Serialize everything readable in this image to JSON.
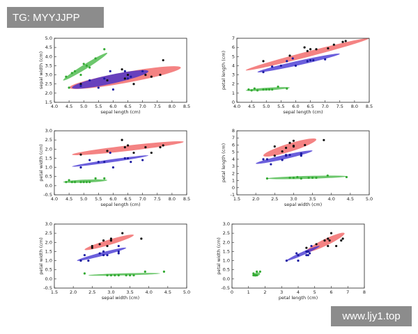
{
  "watermarks": [
    "TG: MYYJJPP",
    "www.ljy1.top"
  ],
  "chart_data": [
    {
      "type": "scatter",
      "xlabel": "sepal length (cm)",
      "ylabel": "sepal width (cm)",
      "xlim": [
        4,
        8.5
      ],
      "ylim": [
        1.5,
        5
      ],
      "xticks": [
        {
          "value": 4,
          "label": "4.0"
        },
        {
          "value": 4.5,
          "label": "4.5"
        },
        {
          "value": 5,
          "label": "5.0"
        },
        {
          "value": 5.5,
          "label": "5.5"
        },
        {
          "value": 6,
          "label": "6.0"
        },
        {
          "value": 6.5,
          "label": "6.5"
        },
        {
          "value": 7,
          "label": "7.0"
        },
        {
          "value": 7.5,
          "label": "7.5"
        },
        {
          "value": 8,
          "label": "8.0"
        },
        {
          "value": 8.5,
          "label": "8.5"
        }
      ],
      "yticks": [
        {
          "value": 1.5,
          "label": "1.5"
        },
        {
          "value": 2,
          "label": "2.0"
        },
        {
          "value": 2.5,
          "label": "2.5"
        },
        {
          "value": 3,
          "label": "3.0"
        },
        {
          "value": 3.5,
          "label": "3.5"
        },
        {
          "value": 4,
          "label": "4.0"
        },
        {
          "value": 4.5,
          "label": "4.5"
        },
        {
          "value": 5,
          "label": "5.0"
        }
      ],
      "ellipses": [
        {
          "color": "#f05a5a",
          "x": [
            4.5,
            8.3
          ],
          "y": [
            2.3,
            3.4
          ],
          "half_width": 0.3
        },
        {
          "color": "#3a2ad0",
          "x": [
            4.6,
            7.2
          ],
          "y": [
            2.3,
            3.2
          ],
          "half_width": 0.25
        },
        {
          "color": "#3cb43c",
          "x": [
            4.3,
            5.8
          ],
          "y": [
            2.7,
            4.2
          ],
          "half_width": 0.15
        }
      ],
      "series": [
        {
          "color": "#111111",
          "x": [
            6.3,
            5.8,
            7.1,
            6.5,
            7.6,
            4.9,
            7.3,
            6.7,
            7.7,
            6.4
          ],
          "values": [
            3.3,
            2.7,
            3.0,
            3.0,
            3.0,
            2.5,
            2.9,
            2.5,
            3.8,
            2.8
          ]
        },
        {
          "color": "#1a1aa0",
          "x": [
            7.0,
            6.4,
            5.5,
            6.5,
            5.7,
            4.9,
            6.6,
            5.2,
            6.0,
            5.9
          ],
          "values": [
            3.2,
            3.2,
            2.3,
            2.8,
            2.8,
            2.4,
            2.9,
            2.7,
            2.2,
            3.2
          ]
        },
        {
          "color": "#33aa33",
          "x": [
            5.1,
            4.9,
            4.7,
            4.6,
            5.0,
            5.4,
            4.4,
            5.7,
            4.5,
            5.2
          ],
          "values": [
            3.5,
            3.0,
            3.2,
            3.1,
            3.6,
            3.9,
            2.9,
            4.4,
            2.3,
            3.4
          ]
        }
      ]
    },
    {
      "type": "scatter",
      "xlabel": "sepal length (cm)",
      "ylabel": "petal length (cm)",
      "xlim": [
        4,
        8.5
      ],
      "ylim": [
        0,
        7
      ],
      "xticks": [
        {
          "value": 4,
          "label": "4.0"
        },
        {
          "value": 4.5,
          "label": "4.5"
        },
        {
          "value": 5,
          "label": "5.0"
        },
        {
          "value": 5.5,
          "label": "5.5"
        },
        {
          "value": 6,
          "label": "6.0"
        },
        {
          "value": 6.5,
          "label": "6.5"
        },
        {
          "value": 7,
          "label": "7.0"
        },
        {
          "value": 7.5,
          "label": "7.5"
        },
        {
          "value": 8,
          "label": "8.0"
        },
        {
          "value": 8.5,
          "label": "8.5"
        }
      ],
      "yticks": [
        0,
        1,
        2,
        3,
        4,
        5,
        6,
        7
      ],
      "ellipses": [
        {
          "color": "#f05a5a",
          "x": [
            4.3,
            8.5
          ],
          "y": [
            3.5,
            7.0
          ],
          "half_width": 0.3
        },
        {
          "color": "#3a2ad0",
          "x": [
            4.7,
            7.5
          ],
          "y": [
            3.3,
            5.3
          ],
          "half_width": 0.25
        },
        {
          "color": "#3cb43c",
          "x": [
            4.3,
            5.8
          ],
          "y": [
            1.3,
            1.6
          ],
          "half_width": 0.15
        }
      ],
      "series": [
        {
          "color": "#111111",
          "x": [
            6.3,
            5.8,
            7.1,
            6.5,
            7.6,
            4.9,
            7.3,
            6.7,
            7.7,
            6.4
          ],
          "values": [
            6.0,
            5.1,
            5.9,
            5.8,
            6.6,
            4.5,
            6.3,
            5.8,
            6.7,
            5.6
          ]
        },
        {
          "color": "#1a1aa0",
          "x": [
            7.0,
            6.4,
            5.5,
            6.5,
            5.7,
            4.9,
            6.6,
            5.2,
            6.0,
            5.9
          ],
          "values": [
            4.7,
            4.5,
            4.0,
            4.6,
            4.5,
            3.3,
            4.6,
            3.9,
            4.0,
            4.8
          ]
        },
        {
          "color": "#33aa33",
          "x": [
            5.1,
            4.9,
            4.7,
            4.6,
            5.0,
            5.4,
            4.4,
            5.7,
            4.5,
            5.2
          ],
          "values": [
            1.4,
            1.4,
            1.3,
            1.5,
            1.4,
            1.7,
            1.4,
            1.5,
            1.3,
            1.4
          ]
        }
      ]
    },
    {
      "type": "scatter",
      "xlabel": "sepal length (cm)",
      "ylabel": "petal width (cm)",
      "xlim": [
        4,
        8.5
      ],
      "ylim": [
        -0.5,
        3
      ],
      "xticks": [
        {
          "value": 4,
          "label": "4.0"
        },
        {
          "value": 4.5,
          "label": "4.5"
        },
        {
          "value": 5,
          "label": "5.0"
        },
        {
          "value": 5.5,
          "label": "5.5"
        },
        {
          "value": 6,
          "label": "6.0"
        },
        {
          "value": 6.5,
          "label": "6.5"
        },
        {
          "value": 7,
          "label": "7.0"
        },
        {
          "value": 7.5,
          "label": "7.5"
        },
        {
          "value": 8,
          "label": "8.0"
        },
        {
          "value": 8.5,
          "label": "8.5"
        }
      ],
      "yticks": [
        -0.5,
        {
          "value": 0,
          "label": "0.0"
        },
        0.5,
        {
          "value": 1,
          "label": "1.0"
        },
        1.5,
        {
          "value": 2,
          "label": "2.0"
        },
        2.5,
        {
          "value": 3,
          "label": "3.0"
        }
      ],
      "ellipses": [
        {
          "color": "#f05a5a",
          "x": [
            4.6,
            8.4
          ],
          "y": [
            1.7,
            2.4
          ],
          "half_width": 0.15
        },
        {
          "color": "#3a2ad0",
          "x": [
            4.6,
            7.2
          ],
          "y": [
            1.05,
            1.65
          ],
          "half_width": 0.08
        },
        {
          "color": "#3cb43c",
          "x": [
            4.3,
            5.8
          ],
          "y": [
            0.2,
            0.3
          ],
          "half_width": 0.08
        }
      ],
      "series": [
        {
          "color": "#111111",
          "x": [
            6.3,
            5.8,
            7.1,
            6.5,
            7.6,
            4.9,
            7.3,
            6.7,
            7.7,
            6.4
          ],
          "values": [
            2.5,
            1.9,
            2.1,
            2.2,
            2.1,
            1.7,
            1.8,
            1.8,
            2.2,
            2.1
          ]
        },
        {
          "color": "#1a1aa0",
          "x": [
            7.0,
            6.4,
            5.5,
            6.5,
            5.7,
            4.9,
            6.6,
            5.2,
            6.0,
            5.9
          ],
          "values": [
            1.4,
            1.5,
            1.3,
            1.5,
            1.3,
            1.0,
            1.3,
            1.4,
            1.0,
            1.8
          ]
        },
        {
          "color": "#33aa33",
          "x": [
            5.1,
            4.9,
            4.7,
            4.6,
            5.0,
            5.4,
            4.4,
            5.7,
            4.5,
            5.2
          ],
          "values": [
            0.2,
            0.2,
            0.2,
            0.2,
            0.2,
            0.4,
            0.2,
            0.4,
            0.3,
            0.2
          ]
        }
      ]
    },
    {
      "type": "scatter",
      "xlabel": "sepal width (cm)",
      "ylabel": "petal length (cm)",
      "xlim": [
        1.5,
        5
      ],
      "ylim": [
        -1,
        8
      ],
      "xticks": [
        1.5,
        {
          "value": 2,
          "label": "2.0"
        },
        2.5,
        {
          "value": 3,
          "label": "3.0"
        },
        3.5,
        {
          "value": 4,
          "label": "4.0"
        },
        4.5,
        {
          "value": 5,
          "label": "5.0"
        }
      ],
      "yticks": [
        -1,
        0,
        1,
        2,
        3,
        4,
        5,
        6,
        7,
        8
      ],
      "ellipses": [
        {
          "color": "#f05a5a",
          "x": [
            2.2,
            3.6
          ],
          "y": [
            4.5,
            6.8
          ],
          "half_width": 0.6
        },
        {
          "color": "#3a2ad0",
          "x": [
            2.0,
            3.5
          ],
          "y": [
            3.4,
            5.2
          ],
          "half_width": 0.3
        },
        {
          "color": "#3cb43c",
          "x": [
            2.3,
            4.4
          ],
          "y": [
            1.3,
            1.6
          ],
          "half_width": 0.2
        }
      ],
      "series": [
        {
          "color": "#111111",
          "x": [
            3.3,
            2.7,
            3.0,
            3.0,
            3.0,
            2.5,
            2.9,
            2.5,
            3.8,
            2.8
          ],
          "values": [
            6.0,
            5.1,
            5.9,
            5.8,
            6.6,
            4.5,
            6.3,
            5.8,
            6.7,
            5.6
          ]
        },
        {
          "color": "#1a1aa0",
          "x": [
            3.2,
            3.2,
            2.3,
            2.8,
            2.8,
            2.4,
            2.9,
            2.7,
            2.2,
            3.2
          ],
          "values": [
            4.7,
            4.5,
            4.0,
            4.6,
            4.5,
            3.3,
            4.6,
            3.9,
            4.0,
            4.8
          ]
        },
        {
          "color": "#33aa33",
          "x": [
            3.5,
            3.0,
            3.2,
            3.1,
            3.6,
            3.9,
            2.9,
            4.4,
            2.3,
            3.4
          ],
          "values": [
            1.4,
            1.4,
            1.3,
            1.5,
            1.4,
            1.7,
            1.4,
            1.5,
            1.3,
            1.4
          ]
        }
      ]
    },
    {
      "type": "scatter",
      "xlabel": "sepal width (cm)",
      "ylabel": "petal width (cm)",
      "xlim": [
        1.5,
        5
      ],
      "ylim": [
        -0.5,
        3
      ],
      "xticks": [
        1.5,
        {
          "value": 2,
          "label": "2.0"
        },
        2.5,
        {
          "value": 3,
          "label": "3.0"
        },
        3.5,
        {
          "value": 4,
          "label": "4.0"
        },
        4.5,
        {
          "value": 5,
          "label": "5.0"
        }
      ],
      "yticks": [
        -0.5,
        {
          "value": 0,
          "label": "0.0"
        },
        0.5,
        {
          "value": 1,
          "label": "1.0"
        },
        1.5,
        {
          "value": 2,
          "label": "2.0"
        },
        2.5,
        {
          "value": 3,
          "label": "3.0"
        }
      ],
      "ellipses": [
        {
          "color": "#f05a5a",
          "x": [
            2.3,
            3.6
          ],
          "y": [
            1.6,
            2.4
          ],
          "half_width": 0.15
        },
        {
          "color": "#3a2ad0",
          "x": [
            2.1,
            3.4
          ],
          "y": [
            1.0,
            1.7
          ],
          "half_width": 0.1
        },
        {
          "color": "#3cb43c",
          "x": [
            2.4,
            4.3
          ],
          "y": [
            0.2,
            0.3
          ],
          "half_width": 0.05
        }
      ],
      "series": [
        {
          "color": "#111111",
          "x": [
            3.3,
            2.7,
            3.0,
            3.0,
            3.0,
            2.5,
            2.9,
            2.5,
            3.8,
            2.8
          ],
          "values": [
            2.5,
            1.9,
            2.1,
            2.2,
            2.1,
            1.7,
            1.8,
            1.8,
            2.2,
            2.1
          ]
        },
        {
          "color": "#1a1aa0",
          "x": [
            3.2,
            3.2,
            2.3,
            2.8,
            2.8,
            2.4,
            2.9,
            2.7,
            2.2,
            3.2
          ],
          "values": [
            1.4,
            1.5,
            1.3,
            1.5,
            1.3,
            1.0,
            1.3,
            1.4,
            1.0,
            1.8
          ]
        },
        {
          "color": "#33aa33",
          "x": [
            3.5,
            3.0,
            3.2,
            3.1,
            3.6,
            3.9,
            2.9,
            4.4,
            2.3,
            3.4
          ],
          "values": [
            0.2,
            0.2,
            0.2,
            0.2,
            0.2,
            0.4,
            0.2,
            0.4,
            0.3,
            0.2
          ]
        }
      ]
    },
    {
      "type": "scatter",
      "xlabel": "petal length (cm)",
      "ylabel": "petal width (cm)",
      "xlim": [
        0,
        8
      ],
      "ylim": [
        -0.5,
        3
      ],
      "xticks": [
        0,
        1,
        2,
        3,
        4,
        5,
        6,
        7,
        8
      ],
      "yticks": [
        -0.5,
        {
          "value": 0,
          "label": "0.0"
        },
        0.5,
        {
          "value": 1,
          "label": "1.0"
        },
        1.5,
        {
          "value": 2,
          "label": "2.0"
        },
        2.5,
        {
          "value": 3,
          "label": "3.0"
        }
      ],
      "ellipses": [
        {
          "color": "#f05a5a",
          "x": [
            4.5,
            6.8
          ],
          "y": [
            1.5,
            2.5
          ],
          "half_width": 0.2
        },
        {
          "color": "#3a2ad0",
          "x": [
            3.3,
            5.3
          ],
          "y": [
            1.0,
            1.8
          ],
          "half_width": 0.1
        },
        {
          "color": "#3cb43c",
          "x": [
            1.3,
            1.7
          ],
          "y": [
            0.2,
            0.3
          ],
          "half_width": 0.1
        }
      ],
      "series": [
        {
          "color": "#111111",
          "x": [
            6.0,
            5.1,
            5.9,
            5.8,
            6.6,
            4.5,
            6.3,
            5.8,
            6.7,
            5.6
          ],
          "values": [
            2.5,
            1.9,
            2.1,
            2.2,
            2.1,
            1.7,
            1.8,
            1.8,
            2.2,
            2.1
          ]
        },
        {
          "color": "#1a1aa0",
          "x": [
            4.7,
            4.5,
            4.0,
            4.6,
            4.5,
            3.3,
            4.6,
            3.9,
            4.0,
            4.8
          ],
          "values": [
            1.4,
            1.5,
            1.3,
            1.5,
            1.3,
            1.0,
            1.3,
            1.4,
            1.0,
            1.8
          ]
        },
        {
          "color": "#33aa33",
          "x": [
            1.4,
            1.4,
            1.3,
            1.5,
            1.4,
            1.7,
            1.4,
            1.5,
            1.3,
            1.4
          ],
          "values": [
            0.2,
            0.2,
            0.2,
            0.2,
            0.2,
            0.4,
            0.2,
            0.4,
            0.3,
            0.2
          ]
        }
      ]
    }
  ]
}
